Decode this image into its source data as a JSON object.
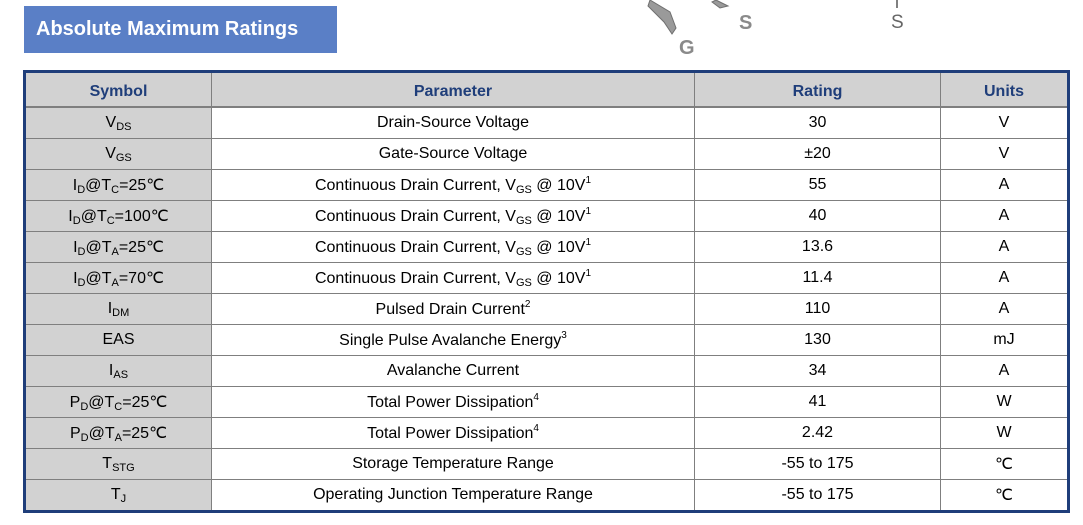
{
  "section_title": "Absolute Maximum Ratings",
  "pin_labels": {
    "gate": "G",
    "source_left": "S",
    "source_right": "S"
  },
  "table": {
    "headers": {
      "symbol": "Symbol",
      "parameter": "Parameter",
      "rating": "Rating",
      "units": "Units"
    },
    "rows": [
      {
        "symbol": {
          "main": "V",
          "sub": "DS",
          "rest": ""
        },
        "parameter": {
          "text": "Drain-Source Voltage"
        },
        "rating": "30",
        "unit": "V"
      },
      {
        "symbol": {
          "main": "V",
          "sub": "GS",
          "rest": ""
        },
        "parameter": {
          "text": "Gate-Source Voltage"
        },
        "rating": "±20",
        "unit": "V"
      },
      {
        "symbol": {
          "main": "I",
          "sub": "D",
          "rest": "@T",
          "sub2": "C",
          "tail": "=25℃"
        },
        "parameter": {
          "pre": "Continuous Drain Current, V",
          "sub": "GS",
          "post": " @ 10V",
          "sup": "1"
        },
        "rating": "55",
        "unit": "A"
      },
      {
        "symbol": {
          "main": "I",
          "sub": "D",
          "rest": "@T",
          "sub2": "C",
          "tail": "=100℃"
        },
        "parameter": {
          "pre": "Continuous Drain Current, V",
          "sub": "GS",
          "post": " @ 10V",
          "sup": "1"
        },
        "rating": "40",
        "unit": "A"
      },
      {
        "symbol": {
          "main": "I",
          "sub": "D",
          "rest": "@T",
          "sub2": "A",
          "tail": "=25℃"
        },
        "parameter": {
          "pre": "Continuous Drain Current, V",
          "sub": "GS",
          "post": " @ 10V",
          "sup": "1"
        },
        "rating": "13.6",
        "unit": "A"
      },
      {
        "symbol": {
          "main": "I",
          "sub": "D",
          "rest": "@T",
          "sub2": "A",
          "tail": "=70℃"
        },
        "parameter": {
          "pre": "Continuous Drain Current, V",
          "sub": "GS",
          "post": " @ 10V",
          "sup": "1"
        },
        "rating": "11.4",
        "unit": "A"
      },
      {
        "symbol": {
          "main": "I",
          "sub": "DM",
          "rest": ""
        },
        "parameter": {
          "text": "Pulsed Drain Current",
          "sup": "2"
        },
        "rating": "110",
        "unit": "A"
      },
      {
        "symbol": {
          "main": "EAS",
          "sub": "",
          "rest": ""
        },
        "parameter": {
          "text": "Single Pulse Avalanche Energy",
          "sup": "3"
        },
        "rating": "130",
        "unit": "mJ"
      },
      {
        "symbol": {
          "main": "I",
          "sub": "AS",
          "rest": ""
        },
        "parameter": {
          "text": "Avalanche Current"
        },
        "rating": "34",
        "unit": "A"
      },
      {
        "symbol": {
          "main": "P",
          "sub": "D",
          "rest": "@T",
          "sub2": "C",
          "tail": "=25℃"
        },
        "parameter": {
          "text": "Total Power Dissipation",
          "sup": "4"
        },
        "rating": "41",
        "unit": "W"
      },
      {
        "symbol": {
          "main": "P",
          "sub": "D",
          "rest": "@T",
          "sub2": "A",
          "tail": "=25℃"
        },
        "parameter": {
          "text": "Total Power Dissipation",
          "sup": "4"
        },
        "rating": "2.42",
        "unit": "W"
      },
      {
        "symbol": {
          "main": "T",
          "sub": "STG",
          "rest": ""
        },
        "parameter": {
          "text": "Storage Temperature Range"
        },
        "rating": "-55 to 175",
        "unit": "℃"
      },
      {
        "symbol": {
          "main": "T",
          "sub": "J",
          "rest": ""
        },
        "parameter": {
          "text": "Operating Junction Temperature Range"
        },
        "rating": "-55 to 175",
        "unit": "℃"
      }
    ]
  }
}
